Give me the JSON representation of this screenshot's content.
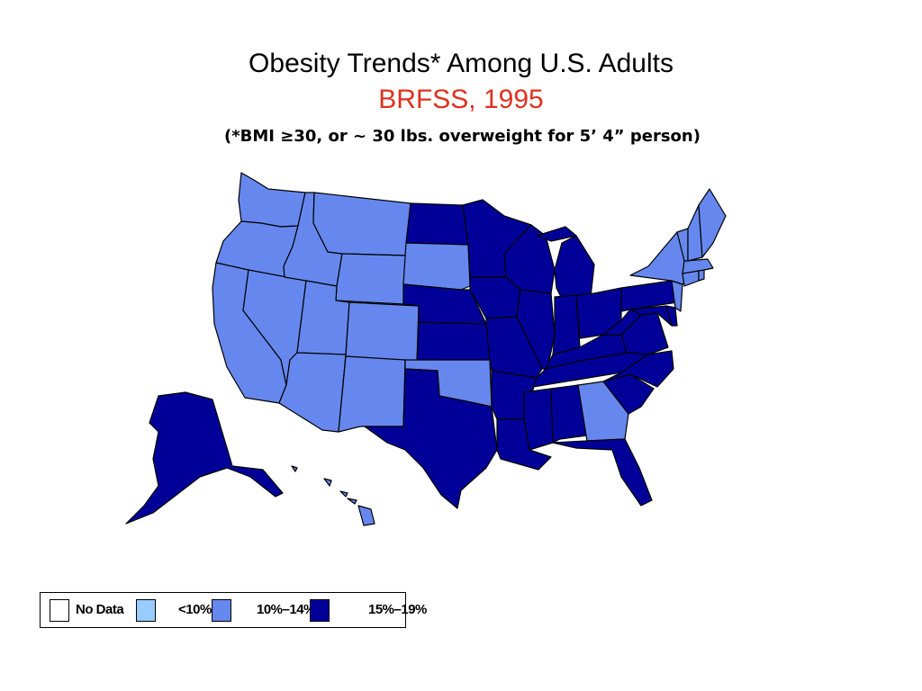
{
  "title": "Obesity Trends* Among U.S. Adults",
  "subtitle": "BRFSS, 1995",
  "note": "(*BMI ≥30, or ~ 30 lbs. overweight for 5’ 4” person)",
  "colors": {
    "no_data": "#ffffff",
    "lt10": "#99ccff",
    "p10_14": "#6688ee",
    "p15_19": "#000099",
    "title_red": "#e03020",
    "border": "#000000"
  },
  "legend": [
    {
      "label": "No Data",
      "color": "#ffffff"
    },
    {
      "label": "<10%",
      "color": "#99ccff"
    },
    {
      "label": "10%–14%",
      "color": "#6688ee"
    },
    {
      "label": "15%–19%",
      "color": "#000099"
    }
  ],
  "map_data": {
    "states": [
      {
        "state": "Washington",
        "category": "10%–14%"
      },
      {
        "state": "Oregon",
        "category": "10%–14%"
      },
      {
        "state": "California",
        "category": "10%–14%"
      },
      {
        "state": "Nevada",
        "category": "10%–14%"
      },
      {
        "state": "Idaho",
        "category": "10%–14%"
      },
      {
        "state": "Montana",
        "category": "10%–14%"
      },
      {
        "state": "Wyoming",
        "category": "10%–14%"
      },
      {
        "state": "Utah",
        "category": "10%–14%"
      },
      {
        "state": "Colorado",
        "category": "10%–14%"
      },
      {
        "state": "Arizona",
        "category": "10%–14%"
      },
      {
        "state": "New Mexico",
        "category": "10%–14%"
      },
      {
        "state": "North Dakota",
        "category": "15%–19%"
      },
      {
        "state": "South Dakota",
        "category": "10%–14%"
      },
      {
        "state": "Nebraska",
        "category": "15%–19%"
      },
      {
        "state": "Kansas",
        "category": "15%–19%"
      },
      {
        "state": "Oklahoma",
        "category": "10%–14%"
      },
      {
        "state": "Texas",
        "category": "15%–19%"
      },
      {
        "state": "Minnesota",
        "category": "15%–19%"
      },
      {
        "state": "Iowa",
        "category": "15%–19%"
      },
      {
        "state": "Missouri",
        "category": "15%–19%"
      },
      {
        "state": "Arkansas",
        "category": "15%–19%"
      },
      {
        "state": "Louisiana",
        "category": "15%–19%"
      },
      {
        "state": "Wisconsin",
        "category": "15%–19%"
      },
      {
        "state": "Illinois",
        "category": "15%–19%"
      },
      {
        "state": "Michigan",
        "category": "15%–19%"
      },
      {
        "state": "Indiana",
        "category": "15%–19%"
      },
      {
        "state": "Ohio",
        "category": "15%–19%"
      },
      {
        "state": "Kentucky",
        "category": "15%–19%"
      },
      {
        "state": "Tennessee",
        "category": "15%–19%"
      },
      {
        "state": "Mississippi",
        "category": "15%–19%"
      },
      {
        "state": "Alabama",
        "category": "15%–19%"
      },
      {
        "state": "Georgia",
        "category": "10%–14%"
      },
      {
        "state": "Florida",
        "category": "15%–19%"
      },
      {
        "state": "South Carolina",
        "category": "15%–19%"
      },
      {
        "state": "North Carolina",
        "category": "15%–19%"
      },
      {
        "state": "Virginia",
        "category": "15%–19%"
      },
      {
        "state": "West Virginia",
        "category": "15%–19%"
      },
      {
        "state": "Pennsylvania",
        "category": "15%–19%"
      },
      {
        "state": "Maryland",
        "category": "15%–19%"
      },
      {
        "state": "Delaware",
        "category": "15%–19%"
      },
      {
        "state": "New Jersey",
        "category": "10%–14%"
      },
      {
        "state": "New York",
        "category": "10%–14%"
      },
      {
        "state": "Connecticut",
        "category": "10%–14%"
      },
      {
        "state": "Rhode Island",
        "category": "10%–14%"
      },
      {
        "state": "Massachusetts",
        "category": "10%–14%"
      },
      {
        "state": "Vermont",
        "category": "10%–14%"
      },
      {
        "state": "New Hampshire",
        "category": "10%–14%"
      },
      {
        "state": "Maine",
        "category": "10%–14%"
      },
      {
        "state": "Alaska",
        "category": "15%–19%"
      },
      {
        "state": "Hawaii",
        "category": "10%–14%"
      }
    ]
  }
}
